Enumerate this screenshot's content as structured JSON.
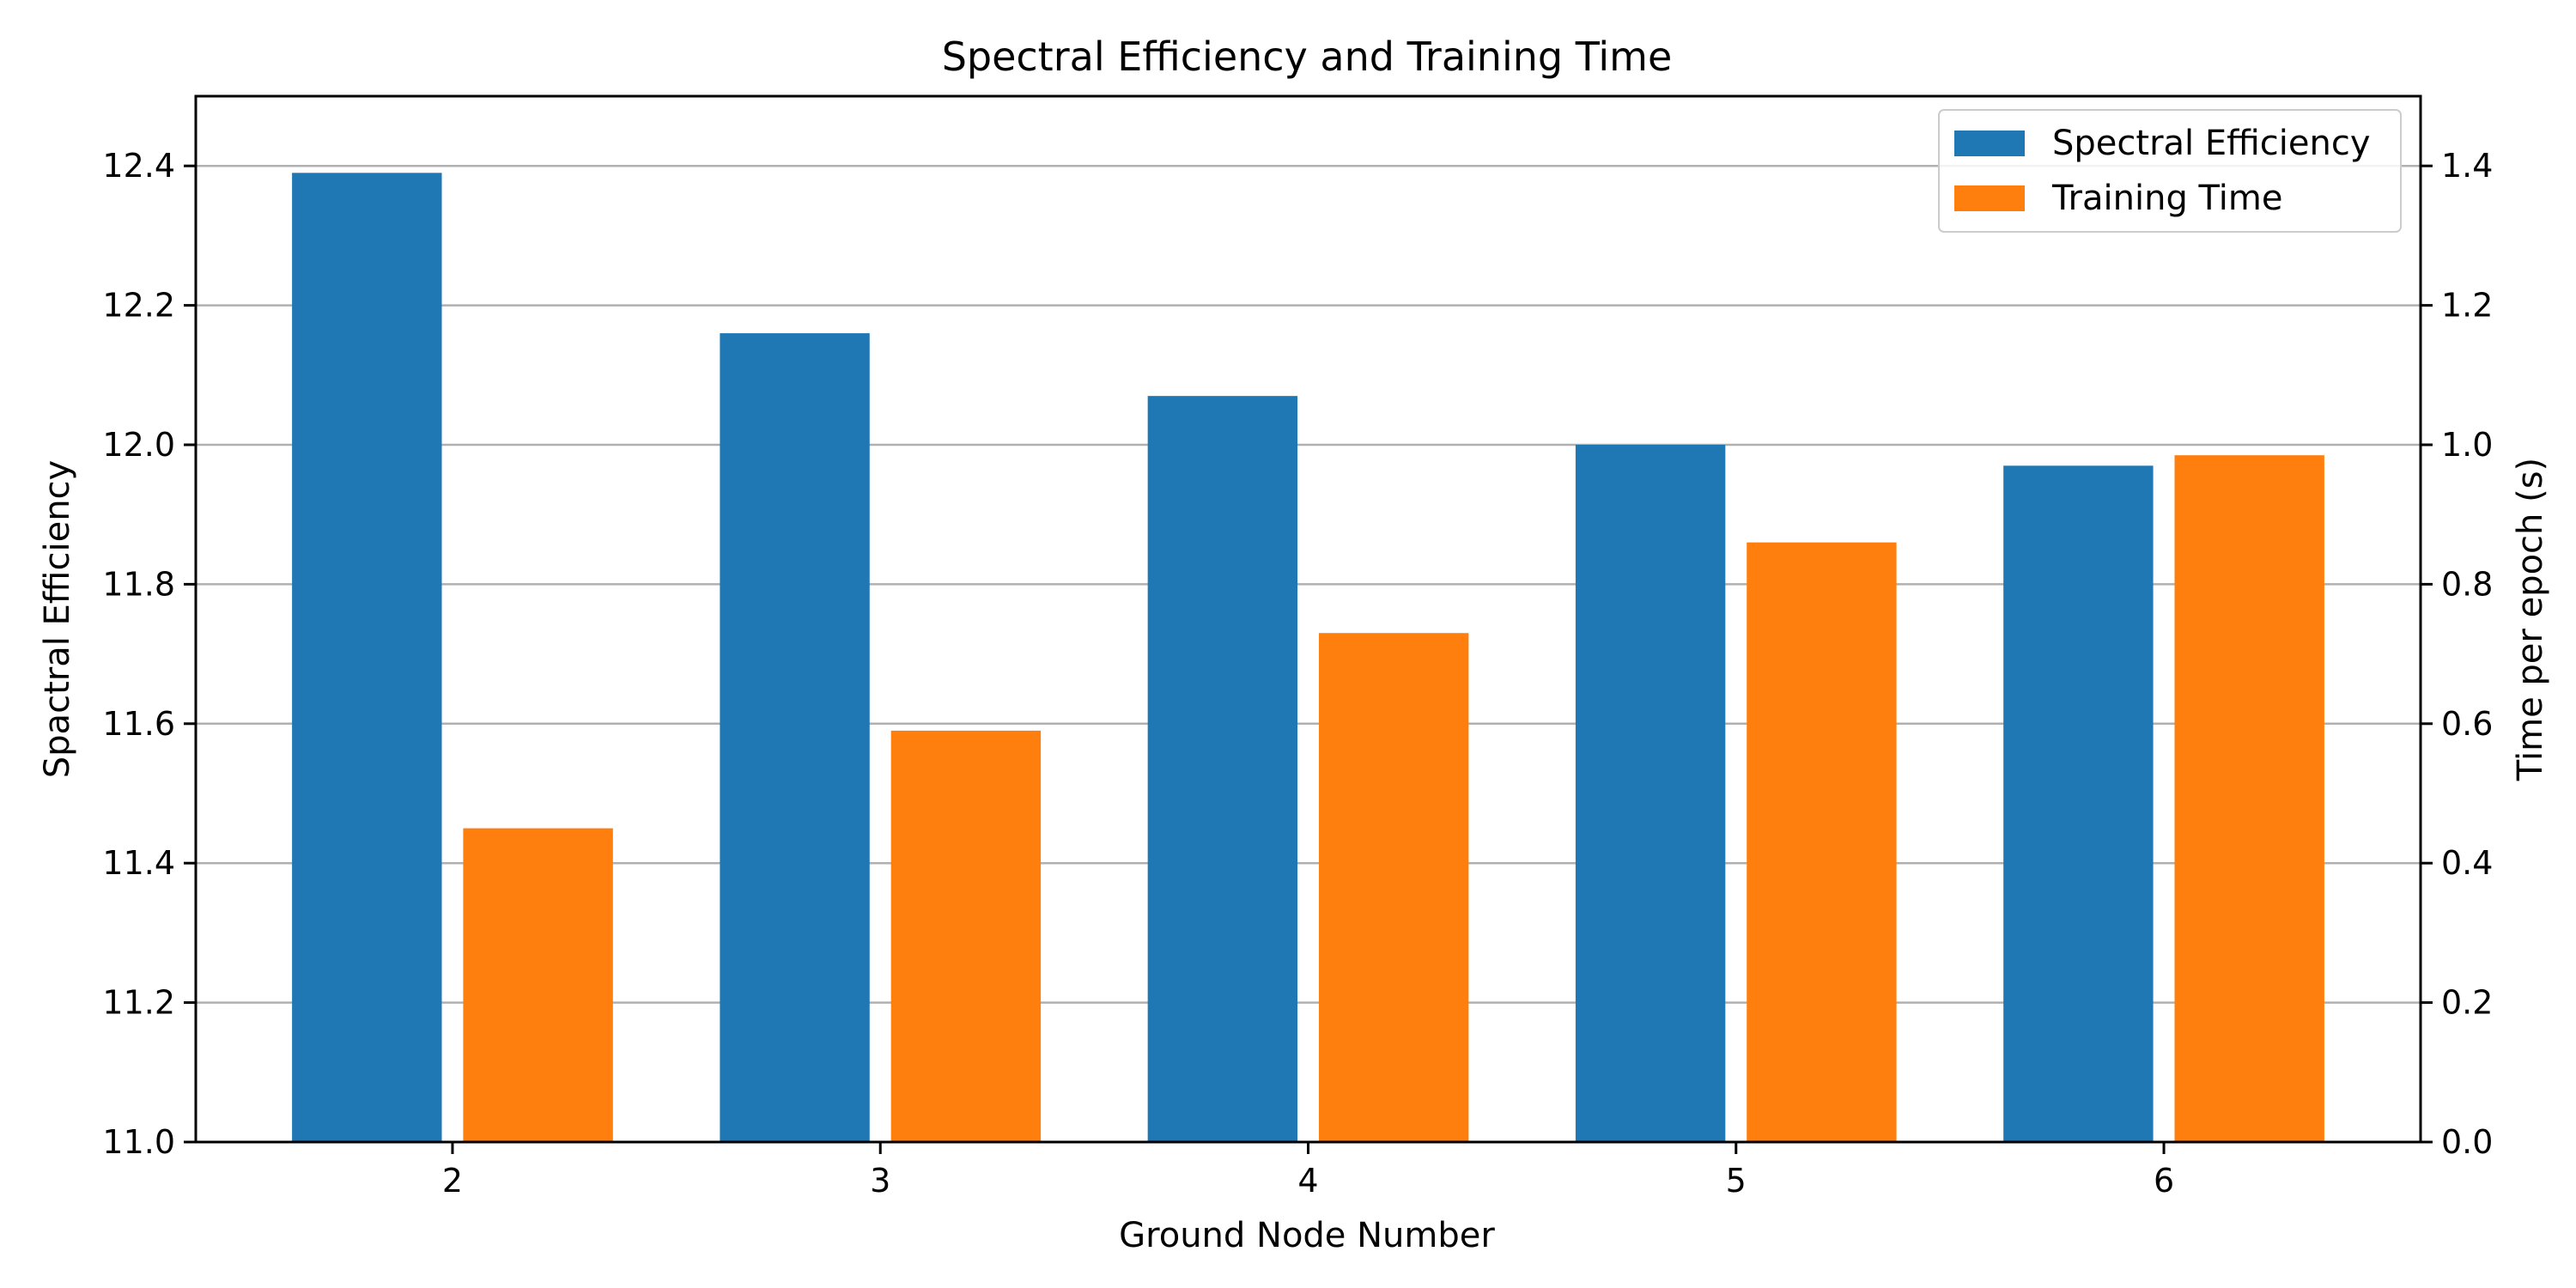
{
  "chart_data": {
    "type": "bar",
    "title": "Spectral Efficiency and Training Time",
    "xlabel": "Ground Node Number",
    "ylabel": "Spactral Efficiency",
    "y2label": "Time per epoch (s)",
    "categories": [
      "2",
      "3",
      "4",
      "5",
      "6"
    ],
    "series": [
      {
        "name": "Spectral Efficiency",
        "axis": "left",
        "color": "#1f77b4",
        "values": [
          12.39,
          12.16,
          12.07,
          12.0,
          11.97
        ]
      },
      {
        "name": "Training Time",
        "axis": "right",
        "color": "#ff7f0e",
        "values": [
          0.45,
          0.59,
          0.73,
          0.86,
          0.985
        ]
      }
    ],
    "ylim": [
      11.0,
      12.5
    ],
    "y2lim": [
      0.0,
      1.5
    ],
    "yticks": [
      "11.0",
      "11.2",
      "11.4",
      "11.6",
      "11.8",
      "12.0",
      "12.2",
      "12.4"
    ],
    "y2ticks": [
      "0.0",
      "0.2",
      "0.4",
      "0.6",
      "0.8",
      "1.0",
      "1.2",
      "1.4"
    ],
    "grid": "horizontal",
    "legend_position": "top-right"
  }
}
